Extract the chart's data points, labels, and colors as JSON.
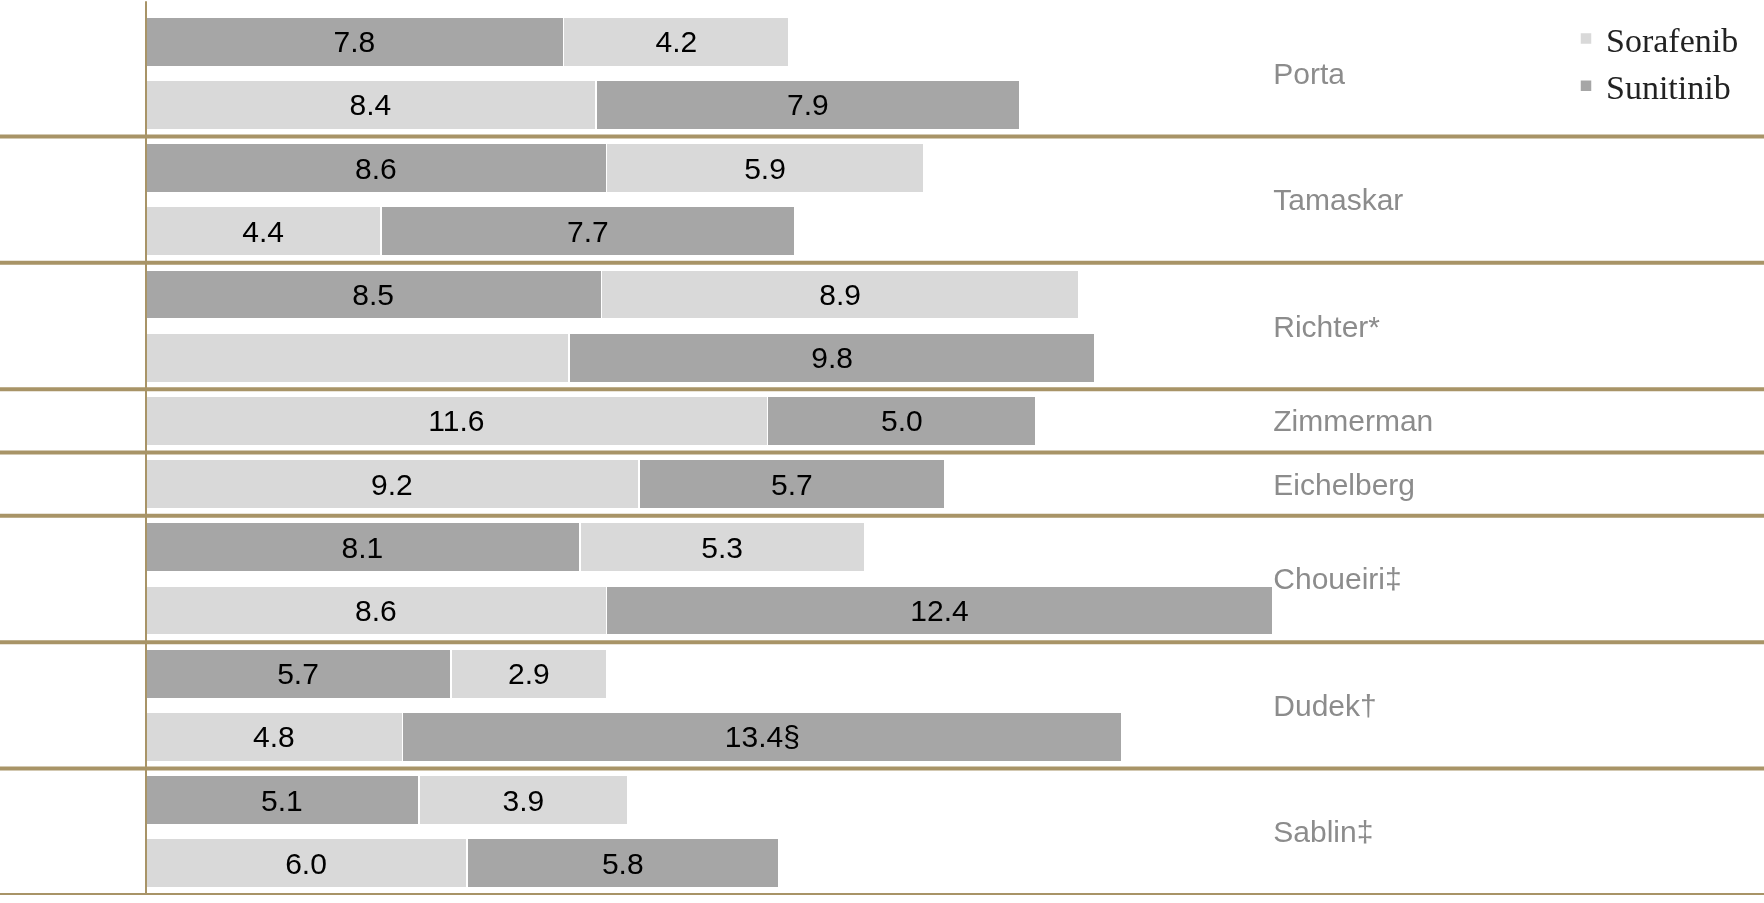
{
  "chart_data": {
    "type": "bar",
    "orientation": "horizontal",
    "stacked": true,
    "categories": [
      "Porta",
      null,
      "Tamaskar",
      null,
      "Richter*",
      null,
      "Zimmerman",
      "Eichelberg",
      "Choueiri‡",
      null,
      "Dudek†",
      null,
      "Sablin‡",
      null
    ],
    "series": [
      {
        "name": "Sunitinib",
        "color": "#a6a6a6",
        "values": [
          7.8,
          null,
          8.6,
          null,
          8.5,
          null,
          null,
          null,
          8.1,
          null,
          5.7,
          null,
          5.1,
          null
        ],
        "value_labels": [
          "7.8",
          null,
          "8.6",
          null,
          "8.5",
          null,
          null,
          null,
          "8.1",
          null,
          "5.7",
          null,
          "5.1",
          null
        ]
      },
      {
        "name": "Sorafenib",
        "color": "#d9d9d9",
        "values": [
          null,
          8.4,
          null,
          4.4,
          null,
          7.9,
          11.6,
          9.2,
          null,
          8.6,
          null,
          4.8,
          null,
          6.0
        ],
        "value_labels": [
          null,
          "8.4",
          null,
          "4.4",
          null,
          null,
          "11.6",
          "9.2",
          null,
          "8.6",
          null,
          "4.8",
          null,
          "6.0"
        ]
      },
      {
        "color": "#d9d9d9",
        "values": [
          4.2,
          null,
          5.9,
          null,
          8.9,
          null,
          null,
          null,
          5.3,
          null,
          2.9,
          null,
          3.9,
          null
        ],
        "value_labels": [
          "4.2",
          null,
          "5.9",
          null,
          "8.9",
          null,
          null,
          null,
          "5.3",
          null,
          "2.9",
          null,
          "3.9",
          null
        ]
      },
      {
        "color": "#a6a6a6",
        "values": [
          null,
          7.9,
          null,
          7.7,
          null,
          9.8,
          5.0,
          5.7,
          null,
          12.4,
          null,
          13.4,
          null,
          5.8
        ],
        "value_labels": [
          null,
          "7.9",
          null,
          "7.7",
          null,
          "9.8",
          "5.0",
          "5.7",
          null,
          "12.4",
          null,
          "13.4§",
          null,
          "5.8"
        ]
      }
    ],
    "xlim": [
      0,
      21
    ],
    "tick_labels": "y",
    "legend": "top right",
    "grid": "y"
  }
}
